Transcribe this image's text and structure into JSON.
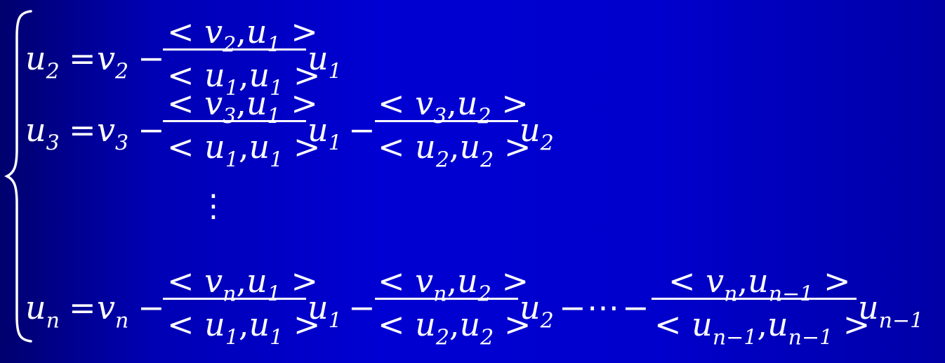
{
  "symbols": {
    "u": "u",
    "v": "v",
    "eq": "=",
    "minus": "−",
    "lt": "<",
    "gt": ">",
    "comma": ",",
    "vdots": "⋮",
    "cdots": "⋯"
  },
  "subscripts": {
    "s1": "1",
    "s2": "2",
    "s3": "3",
    "sn": "n",
    "snm1": "n−1"
  },
  "colors": {
    "text": "#ffffff",
    "background_dark": "#00006e",
    "background_mid": "#0000d2"
  }
}
